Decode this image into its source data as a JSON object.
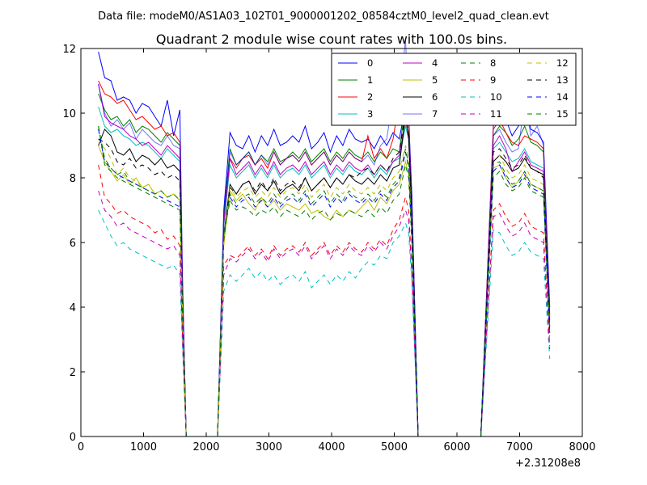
{
  "chart_data": {
    "type": "line",
    "suptitle": "Data file: modeM0/AS1A03_102T01_9000001202_08584cztM0_level2_quad_clean.evt",
    "title": "Quadrant 2 module wise count rates with 100.0s bins.",
    "xlabel": "",
    "ylabel": "",
    "x_offset_label": "+2.31208e8",
    "xlim": [
      0,
      8000
    ],
    "ylim": [
      0,
      12
    ],
    "xticks": [
      0,
      1000,
      2000,
      3000,
      4000,
      5000,
      6000,
      7000,
      8000
    ],
    "yticks": [
      0,
      2,
      4,
      6,
      8,
      10,
      12
    ],
    "grid": false,
    "legend_position": "top-right",
    "x": [
      280,
      380,
      480,
      580,
      680,
      780,
      880,
      980,
      1080,
      1180,
      1280,
      1380,
      1480,
      1580,
      1620,
      1680,
      2180,
      2280,
      2380,
      2480,
      2580,
      2680,
      2780,
      2880,
      2980,
      3080,
      3180,
      3280,
      3380,
      3480,
      3580,
      3680,
      3780,
      3880,
      3980,
      4080,
      4180,
      4280,
      4380,
      4480,
      4580,
      4680,
      4780,
      4880,
      4980,
      5080,
      5180,
      5230,
      5280,
      5380,
      6380,
      6580,
      6680,
      6780,
      6880,
      6980,
      7080,
      7180,
      7280,
      7380,
      7480
    ],
    "series": [
      {
        "name": "0",
        "color": "#0000ff",
        "dash": "solid",
        "values": [
          11.9,
          11.1,
          11.0,
          10.4,
          10.5,
          10.4,
          10.0,
          10.3,
          10.2,
          9.9,
          9.6,
          10.4,
          9.3,
          10.1,
          5.0,
          0,
          0,
          7.0,
          9.4,
          9.0,
          8.9,
          9.3,
          8.8,
          9.3,
          9.0,
          9.5,
          9.0,
          9.1,
          9.3,
          9.1,
          9.6,
          8.9,
          9.1,
          9.4,
          8.8,
          9.3,
          9.0,
          9.5,
          9.2,
          9.1,
          9.2,
          8.9,
          9.3,
          9.0,
          9.4,
          9.2,
          10.2,
          9.8,
          7.5,
          0,
          0,
          9.6,
          10.0,
          9.8,
          9.3,
          9.6,
          10.2,
          9.5,
          9.4,
          9.1,
          4.0
        ]
      },
      {
        "name": "1",
        "color": "#008000",
        "dash": "solid",
        "values": [
          10.6,
          10.1,
          9.8,
          9.9,
          9.6,
          9.8,
          9.4,
          9.6,
          9.5,
          9.3,
          9.1,
          9.4,
          9.2,
          9.0,
          4.6,
          0,
          0,
          6.8,
          8.9,
          8.4,
          8.6,
          8.8,
          8.4,
          8.7,
          8.5,
          8.9,
          8.5,
          8.6,
          8.8,
          8.6,
          8.9,
          8.5,
          8.7,
          8.9,
          8.5,
          8.8,
          8.6,
          8.9,
          8.7,
          8.6,
          8.8,
          8.5,
          8.8,
          8.6,
          8.9,
          8.8,
          10.3,
          9.6,
          7.2,
          0,
          0,
          9.3,
          9.6,
          9.4,
          9.0,
          9.2,
          9.6,
          9.1,
          9.0,
          8.8,
          3.8
        ]
      },
      {
        "name": "2",
        "color": "#ff0000",
        "dash": "solid",
        "values": [
          11.0,
          10.6,
          10.5,
          10.3,
          10.4,
          10.1,
          9.8,
          9.9,
          9.7,
          9.5,
          9.6,
          9.3,
          9.4,
          9.1,
          4.7,
          0,
          0,
          6.6,
          8.6,
          8.3,
          8.6,
          8.7,
          8.4,
          8.6,
          8.3,
          8.8,
          8.4,
          8.6,
          8.7,
          8.5,
          8.8,
          8.4,
          8.6,
          8.8,
          8.4,
          8.7,
          8.5,
          8.8,
          8.6,
          8.5,
          9.3,
          8.6,
          8.9,
          8.6,
          9.2,
          10.4,
          10.5,
          9.8,
          7.2,
          0,
          0,
          9.5,
          9.8,
          9.4,
          9.1,
          9.0,
          9.3,
          9.2,
          9.1,
          8.9,
          3.7
        ]
      },
      {
        "name": "3",
        "color": "#00bfbf",
        "dash": "solid",
        "values": [
          10.2,
          9.6,
          9.4,
          9.5,
          9.3,
          9.2,
          9.0,
          9.1,
          9.0,
          8.8,
          8.6,
          8.9,
          8.7,
          8.5,
          4.4,
          0,
          0,
          6.5,
          8.4,
          8.0,
          8.2,
          8.4,
          8.0,
          8.3,
          8.0,
          8.4,
          8.0,
          8.2,
          8.3,
          8.1,
          8.4,
          8.0,
          8.2,
          8.4,
          8.0,
          8.3,
          8.1,
          8.4,
          8.2,
          8.1,
          8.3,
          8.0,
          8.3,
          8.1,
          8.5,
          8.6,
          9.6,
          9.2,
          6.9,
          0,
          0,
          8.9,
          9.1,
          8.8,
          8.5,
          8.6,
          8.9,
          8.5,
          8.4,
          8.3,
          3.5
        ]
      },
      {
        "name": "4",
        "color": "#bf00bf",
        "dash": "solid",
        "values": [
          10.9,
          9.9,
          9.7,
          9.6,
          9.5,
          9.3,
          9.2,
          9.0,
          9.1,
          8.9,
          8.7,
          9.0,
          8.8,
          8.6,
          4.5,
          0,
          0,
          6.6,
          8.6,
          8.1,
          8.3,
          8.5,
          8.1,
          8.4,
          8.1,
          8.5,
          8.1,
          8.3,
          8.4,
          8.2,
          8.5,
          8.1,
          8.3,
          8.5,
          8.1,
          8.4,
          8.2,
          8.5,
          8.3,
          8.2,
          8.4,
          8.1,
          8.4,
          8.2,
          8.5,
          8.7,
          9.8,
          9.3,
          7.0,
          0,
          0,
          9.0,
          9.3,
          8.9,
          8.2,
          8.5,
          8.8,
          8.4,
          8.3,
          8.2,
          3.6
        ]
      },
      {
        "name": "5",
        "color": "#bfbf00",
        "dash": "solid",
        "values": [
          9.0,
          8.5,
          8.2,
          7.9,
          8.1,
          7.8,
          8.0,
          7.7,
          7.8,
          7.5,
          7.6,
          7.4,
          7.5,
          7.3,
          3.8,
          0,
          0,
          5.9,
          7.6,
          7.3,
          7.5,
          7.2,
          7.0,
          7.4,
          7.1,
          7.3,
          7.0,
          7.2,
          7.1,
          7.0,
          7.2,
          6.9,
          7.0,
          6.8,
          6.7,
          7.0,
          6.8,
          7.0,
          6.9,
          7.1,
          7.3,
          7.0,
          7.4,
          7.2,
          7.6,
          7.8,
          8.5,
          8.1,
          6.3,
          0,
          0,
          8.3,
          8.4,
          8.0,
          7.7,
          7.9,
          8.2,
          7.8,
          7.7,
          7.6,
          3.2
        ]
      },
      {
        "name": "6",
        "color": "#000000",
        "dash": "solid",
        "values": [
          9.0,
          9.5,
          9.3,
          8.8,
          8.7,
          8.9,
          8.5,
          8.7,
          8.6,
          8.4,
          8.6,
          8.3,
          8.4,
          8.2,
          4.2,
          0,
          0,
          6.2,
          7.8,
          7.5,
          7.8,
          7.9,
          7.5,
          7.8,
          7.6,
          7.9,
          7.5,
          7.7,
          7.8,
          7.6,
          8.0,
          7.6,
          7.8,
          8.0,
          7.7,
          8.0,
          7.8,
          8.1,
          7.9,
          7.8,
          8.0,
          7.8,
          8.1,
          7.9,
          8.3,
          8.4,
          9.9,
          9.2,
          6.8,
          0,
          0,
          8.5,
          8.7,
          8.5,
          8.2,
          8.3,
          8.6,
          8.3,
          8.2,
          8.1,
          3.4
        ]
      },
      {
        "name": "7",
        "color": "#0000ff",
        "dash": "solid",
        "alpha": 0.55,
        "values": [
          10.9,
          10.0,
          9.6,
          9.8,
          9.5,
          9.7,
          9.2,
          9.5,
          9.3,
          9.1,
          9.0,
          9.3,
          9.0,
          8.9,
          4.6,
          0,
          0,
          6.8,
          8.8,
          8.4,
          8.6,
          8.8,
          8.4,
          8.7,
          8.4,
          8.8,
          8.4,
          8.6,
          8.7,
          8.5,
          8.8,
          8.4,
          8.6,
          8.8,
          8.4,
          8.7,
          8.5,
          8.8,
          8.6,
          8.5,
          8.7,
          8.4,
          9.0,
          9.2,
          10.5,
          10.2,
          12.3,
          10.0,
          7.4,
          0,
          0,
          9.3,
          9.5,
          9.1,
          8.8,
          8.9,
          10.4,
          9.3,
          9.6,
          9.0,
          4.0
        ]
      },
      {
        "name": "8",
        "color": "#008000",
        "dash": "dash",
        "values": [
          9.6,
          8.4,
          8.2,
          8.0,
          7.9,
          7.8,
          7.7,
          7.6,
          7.5,
          7.4,
          7.3,
          7.2,
          7.1,
          7.0,
          3.6,
          0,
          0,
          6.2,
          7.3,
          7.0,
          7.1,
          7.0,
          6.8,
          7.0,
          6.9,
          7.1,
          6.8,
          7.0,
          6.9,
          6.8,
          7.0,
          6.7,
          6.9,
          7.0,
          6.7,
          6.9,
          6.8,
          7.0,
          6.9,
          6.8,
          7.0,
          6.8,
          7.1,
          6.9,
          7.3,
          7.5,
          8.4,
          8.0,
          6.0,
          0,
          0,
          8.0,
          8.2,
          7.8,
          7.6,
          7.7,
          8.0,
          7.6,
          7.5,
          7.4,
          3.1
        ]
      },
      {
        "name": "9",
        "color": "#ff0000",
        "dash": "dash",
        "values": [
          8.4,
          7.4,
          7.2,
          6.9,
          7.0,
          6.8,
          6.7,
          6.6,
          6.5,
          6.3,
          6.4,
          6.1,
          6.2,
          5.9,
          3.2,
          0,
          0,
          5.3,
          5.6,
          5.5,
          5.7,
          5.9,
          5.6,
          5.8,
          5.5,
          5.9,
          5.6,
          5.8,
          5.9,
          5.7,
          6.0,
          5.6,
          5.8,
          6.0,
          5.6,
          5.9,
          5.7,
          6.0,
          5.8,
          5.7,
          6.0,
          5.8,
          6.1,
          5.9,
          6.4,
          6.7,
          7.4,
          7.0,
          5.2,
          0,
          0,
          7.0,
          7.2,
          6.8,
          6.5,
          6.6,
          6.9,
          6.5,
          6.4,
          6.3,
          2.8
        ]
      },
      {
        "name": "10",
        "color": "#00bfbf",
        "dash": "dash",
        "values": [
          7.0,
          6.6,
          6.2,
          5.9,
          6.0,
          5.8,
          5.7,
          5.6,
          5.5,
          5.4,
          5.3,
          5.2,
          5.3,
          5.0,
          2.8,
          0,
          0,
          4.5,
          5.0,
          4.8,
          5.0,
          5.2,
          4.9,
          5.1,
          4.8,
          5.0,
          4.7,
          4.9,
          5.0,
          4.8,
          5.1,
          4.6,
          4.8,
          5.0,
          4.7,
          5.0,
          4.8,
          5.1,
          4.9,
          5.2,
          5.4,
          5.3,
          5.6,
          5.5,
          6.0,
          6.2,
          6.6,
          6.3,
          4.8,
          0,
          0,
          6.4,
          6.3,
          5.9,
          5.6,
          5.7,
          6.0,
          5.7,
          5.6,
          5.5,
          2.4
        ]
      },
      {
        "name": "11",
        "color": "#bf00bf",
        "dash": "dash",
        "values": [
          7.6,
          7.0,
          6.8,
          6.5,
          6.6,
          6.4,
          6.3,
          6.2,
          6.1,
          6.0,
          5.9,
          5.8,
          5.9,
          5.6,
          3.0,
          0,
          0,
          5.0,
          5.5,
          5.4,
          5.6,
          5.8,
          5.5,
          5.7,
          5.4,
          5.8,
          5.5,
          5.7,
          5.8,
          5.6,
          5.9,
          5.5,
          5.7,
          5.9,
          5.5,
          5.8,
          5.6,
          5.9,
          5.7,
          5.6,
          5.9,
          5.7,
          6.0,
          5.8,
          6.2,
          6.5,
          7.0,
          6.7,
          5.0,
          0,
          0,
          6.8,
          6.9,
          6.5,
          6.2,
          6.3,
          6.6,
          6.2,
          6.1,
          6.0,
          2.7
        ]
      },
      {
        "name": "12",
        "color": "#bfbf00",
        "dash": "dash",
        "values": [
          9.2,
          8.9,
          8.6,
          8.1,
          8.3,
          8.0,
          7.9,
          7.7,
          7.8,
          7.5,
          7.6,
          7.4,
          7.5,
          7.3,
          3.9,
          0,
          0,
          6.0,
          7.7,
          7.4,
          7.6,
          7.7,
          7.4,
          7.6,
          7.4,
          7.7,
          7.4,
          7.6,
          7.7,
          7.5,
          7.8,
          7.4,
          7.6,
          7.8,
          7.4,
          7.7,
          7.5,
          7.8,
          7.6,
          7.5,
          7.7,
          7.5,
          7.8,
          7.6,
          8.0,
          8.2,
          9.0,
          8.6,
          6.5,
          0,
          0,
          8.6,
          8.7,
          8.3,
          8.0,
          8.1,
          8.4,
          8.0,
          7.9,
          7.8,
          3.3
        ]
      },
      {
        "name": "13",
        "color": "#000000",
        "dash": "dash",
        "values": [
          9.2,
          9.1,
          8.9,
          8.5,
          8.4,
          8.6,
          8.3,
          8.4,
          8.3,
          8.1,
          8.2,
          8.0,
          8.1,
          7.9,
          4.0,
          0,
          0,
          6.1,
          7.7,
          7.5,
          7.8,
          7.9,
          7.6,
          7.9,
          7.6,
          8.0,
          7.6,
          7.8,
          7.9,
          7.7,
          8.0,
          7.6,
          7.8,
          8.0,
          7.7,
          8.0,
          7.8,
          8.1,
          8.0,
          8.2,
          8.3,
          8.1,
          8.4,
          8.2,
          8.6,
          8.8,
          10.0,
          9.3,
          6.9,
          0,
          0,
          8.8,
          8.9,
          8.6,
          8.3,
          8.4,
          8.7,
          8.3,
          8.2,
          8.0,
          3.4
        ]
      },
      {
        "name": "14",
        "color": "#0000ff",
        "dash": "dash",
        "values": [
          9.5,
          8.5,
          8.3,
          8.1,
          8.0,
          7.9,
          7.8,
          7.7,
          7.6,
          7.5,
          7.4,
          7.3,
          7.2,
          7.1,
          3.7,
          0,
          0,
          6.3,
          7.4,
          7.1,
          7.3,
          7.4,
          7.1,
          7.3,
          7.1,
          7.4,
          7.1,
          7.3,
          7.4,
          7.2,
          7.5,
          7.1,
          7.3,
          7.5,
          7.1,
          7.4,
          7.2,
          7.5,
          7.3,
          7.2,
          7.4,
          7.2,
          7.5,
          7.3,
          7.7,
          7.9,
          8.8,
          8.3,
          6.2,
          0,
          0,
          8.2,
          8.4,
          8.0,
          7.7,
          7.8,
          8.1,
          7.7,
          7.6,
          7.5,
          3.2
        ]
      },
      {
        "name": "15",
        "color": "#008000",
        "dash": "dash",
        "values": [
          9.6,
          8.6,
          8.3,
          8.1,
          8.2,
          7.9,
          7.8,
          7.7,
          7.6,
          7.5,
          7.6,
          7.4,
          7.5,
          7.3,
          3.8,
          0,
          0,
          6.2,
          7.5,
          7.2,
          7.4,
          7.5,
          7.2,
          7.4,
          7.2,
          7.5,
          7.2,
          7.4,
          7.5,
          7.3,
          7.6,
          7.2,
          7.4,
          7.6,
          7.2,
          7.5,
          7.3,
          7.6,
          7.4,
          7.3,
          7.5,
          7.3,
          7.6,
          7.4,
          7.8,
          8.0,
          8.9,
          8.4,
          6.3,
          0,
          0,
          8.4,
          8.5,
          8.1,
          7.8,
          7.9,
          8.2,
          7.8,
          7.7,
          7.6,
          3.2
        ]
      }
    ]
  }
}
